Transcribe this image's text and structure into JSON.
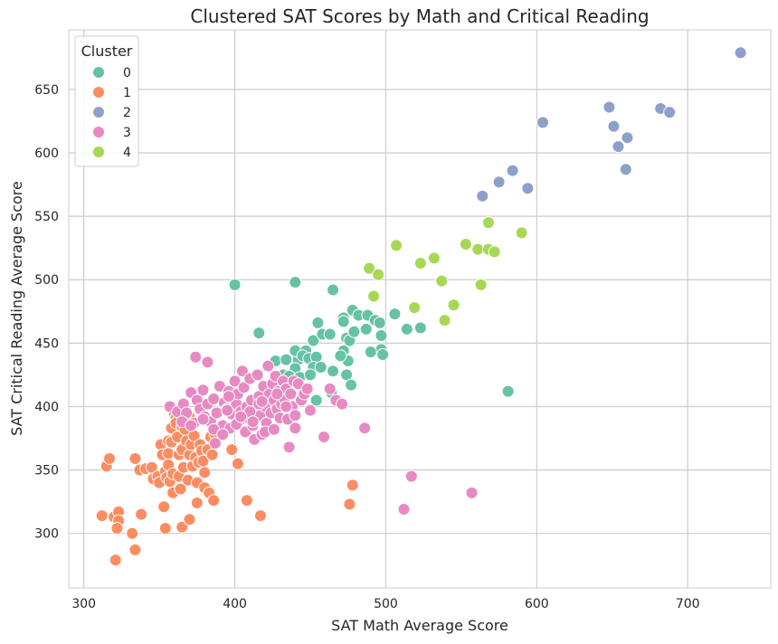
{
  "chart_data": {
    "type": "scatter",
    "title": "Clustered SAT Scores by Math and Critical Reading",
    "xlabel": "SAT Math Average Score",
    "ylabel": "SAT Critical Reading Average Score",
    "xlim": [
      290,
      755
    ],
    "ylim": [
      257,
      697
    ],
    "xticks": [
      300,
      400,
      500,
      600,
      700
    ],
    "yticks": [
      300,
      350,
      400,
      450,
      500,
      550,
      600,
      650
    ],
    "grid": true,
    "legend": {
      "title": "Cluster",
      "placement": "top-left"
    },
    "series": [
      {
        "name": "0",
        "color": "#66c2a5",
        "points": [
          [
            400,
            496
          ],
          [
            440,
            498
          ],
          [
            416,
            458
          ],
          [
            465,
            492
          ],
          [
            455,
            466
          ],
          [
            452,
            452
          ],
          [
            458,
            457
          ],
          [
            463,
            457
          ],
          [
            472,
            470
          ],
          [
            472,
            467
          ],
          [
            478,
            476
          ],
          [
            482,
            472
          ],
          [
            488,
            472
          ],
          [
            493,
            468
          ],
          [
            496,
            466
          ],
          [
            506,
            473
          ],
          [
            514,
            461
          ],
          [
            523,
            462
          ],
          [
            474,
            454
          ],
          [
            476,
            452
          ],
          [
            472,
            444
          ],
          [
            479,
            459
          ],
          [
            487,
            461
          ],
          [
            497,
            456
          ],
          [
            497,
            445
          ],
          [
            490,
            443
          ],
          [
            498,
            441
          ],
          [
            427,
            436
          ],
          [
            434,
            437
          ],
          [
            442,
            437
          ],
          [
            440,
            444
          ],
          [
            447,
            444
          ],
          [
            445,
            440
          ],
          [
            449,
            438
          ],
          [
            454,
            439
          ],
          [
            440,
            430
          ],
          [
            452,
            431
          ],
          [
            457,
            431
          ],
          [
            465,
            428
          ],
          [
            474,
            425
          ],
          [
            432,
            425
          ],
          [
            436,
            424
          ],
          [
            443,
            423
          ],
          [
            450,
            425
          ],
          [
            477,
            417
          ],
          [
            464,
            411
          ],
          [
            454,
            405
          ],
          [
            475,
            436
          ],
          [
            581,
            412
          ],
          [
            470,
            440
          ]
        ]
      },
      {
        "name": "1",
        "color": "#fc8d62",
        "points": [
          [
            315,
            353
          ],
          [
            317,
            359
          ],
          [
            312,
            314
          ],
          [
            320,
            313
          ],
          [
            323,
            317
          ],
          [
            323,
            310
          ],
          [
            322,
            304
          ],
          [
            321,
            279
          ],
          [
            332,
            300
          ],
          [
            334,
            287
          ],
          [
            334,
            359
          ],
          [
            337,
            350
          ],
          [
            338,
            315
          ],
          [
            341,
            351
          ],
          [
            345,
            352
          ],
          [
            346,
            343
          ],
          [
            349,
            345
          ],
          [
            350,
            340
          ],
          [
            351,
            370
          ],
          [
            352,
            362
          ],
          [
            353,
            321
          ],
          [
            354,
            349
          ],
          [
            355,
            344
          ],
          [
            356,
            373
          ],
          [
            356,
            363
          ],
          [
            356,
            354
          ],
          [
            357,
            341
          ],
          [
            358,
            383
          ],
          [
            358,
            372
          ],
          [
            359,
            347
          ],
          [
            359,
            332
          ],
          [
            360,
            394
          ],
          [
            361,
            391
          ],
          [
            361,
            387
          ],
          [
            362,
            376
          ],
          [
            363,
            362
          ],
          [
            363,
            345
          ],
          [
            364,
            335
          ],
          [
            365,
            384
          ],
          [
            365,
            366
          ],
          [
            366,
            352
          ],
          [
            367,
            382
          ],
          [
            368,
            373
          ],
          [
            369,
            342
          ],
          [
            370,
            392
          ],
          [
            370,
            362
          ],
          [
            371,
            370
          ],
          [
            372,
            353
          ],
          [
            373,
            377
          ],
          [
            374,
            360
          ],
          [
            375,
            340
          ],
          [
            376,
            356
          ],
          [
            377,
            370
          ],
          [
            378,
            365
          ],
          [
            379,
            357
          ],
          [
            380,
            348
          ],
          [
            382,
            366
          ],
          [
            384,
            376
          ],
          [
            385,
            362
          ],
          [
            387,
            378
          ],
          [
            354,
            304
          ],
          [
            365,
            305
          ],
          [
            370,
            311
          ],
          [
            375,
            324
          ],
          [
            380,
            336
          ],
          [
            383,
            332
          ],
          [
            386,
            326
          ],
          [
            398,
            366
          ],
          [
            402,
            355
          ],
          [
            408,
            326
          ],
          [
            417,
            314
          ],
          [
            476,
            323
          ],
          [
            478,
            338
          ]
        ]
      },
      {
        "name": "2",
        "color": "#8da0cb",
        "points": [
          [
            564,
            566
          ],
          [
            575,
            577
          ],
          [
            584,
            586
          ],
          [
            594,
            572
          ],
          [
            604,
            624
          ],
          [
            648,
            636
          ],
          [
            651,
            621
          ],
          [
            654,
            605
          ],
          [
            659,
            587
          ],
          [
            660,
            612
          ],
          [
            682,
            635
          ],
          [
            688,
            632
          ],
          [
            735,
            679
          ]
        ]
      },
      {
        "name": "3",
        "color": "#e78ac3",
        "points": [
          [
            374,
            439
          ],
          [
            382,
            435
          ],
          [
            357,
            400
          ],
          [
            362,
            396
          ],
          [
            366,
            402
          ],
          [
            368,
            395
          ],
          [
            371,
            411
          ],
          [
            373,
            387
          ],
          [
            375,
            405
          ],
          [
            377,
            398
          ],
          [
            379,
            413
          ],
          [
            380,
            392
          ],
          [
            382,
            402
          ],
          [
            384,
            388
          ],
          [
            386,
            406
          ],
          [
            388,
            395
          ],
          [
            390,
            416
          ],
          [
            392,
            385
          ],
          [
            393,
            403
          ],
          [
            395,
            398
          ],
          [
            396,
            412
          ],
          [
            397,
            383
          ],
          [
            398,
            394
          ],
          [
            400,
            420
          ],
          [
            401,
            402
          ],
          [
            402,
            410
          ],
          [
            403,
            389
          ],
          [
            404,
            396
          ],
          [
            405,
            428
          ],
          [
            406,
            415
          ],
          [
            407,
            380
          ],
          [
            408,
            400
          ],
          [
            409,
            391
          ],
          [
            410,
            422
          ],
          [
            411,
            405
          ],
          [
            412,
            385
          ],
          [
            413,
            374
          ],
          [
            414,
            395
          ],
          [
            415,
            425
          ],
          [
            416,
            408
          ],
          [
            417,
            393
          ],
          [
            418,
            378
          ],
          [
            419,
            416
          ],
          [
            420,
            400
          ],
          [
            421,
            387
          ],
          [
            422,
            432
          ],
          [
            423,
            410
          ],
          [
            424,
            395
          ],
          [
            425,
            418
          ],
          [
            426,
            405
          ],
          [
            427,
            424
          ],
          [
            428,
            398
          ],
          [
            429,
            412
          ],
          [
            430,
            391
          ],
          [
            431,
            402
          ],
          [
            432,
            420
          ],
          [
            433,
            406
          ],
          [
            434,
            414
          ],
          [
            435,
            390
          ],
          [
            436,
            368
          ],
          [
            437,
            410
          ],
          [
            438,
            400
          ],
          [
            439,
            420
          ],
          [
            440,
            393
          ],
          [
            442,
            418
          ],
          [
            444,
            405
          ],
          [
            446,
            410
          ],
          [
            448,
            414
          ],
          [
            450,
            397
          ],
          [
            459,
            376
          ],
          [
            463,
            414
          ],
          [
            467,
            405
          ],
          [
            471,
            402
          ],
          [
            486,
            383
          ],
          [
            517,
            345
          ],
          [
            512,
            319
          ],
          [
            557,
            332
          ],
          [
            365,
            388
          ],
          [
            371,
            385
          ],
          [
            379,
            390
          ],
          [
            386,
            382
          ],
          [
            392,
            378
          ],
          [
            396,
            408
          ],
          [
            401,
            386
          ],
          [
            410,
            396
          ],
          [
            416,
            402
          ],
          [
            420,
            380
          ],
          [
            426,
            382
          ],
          [
            440,
            383
          ],
          [
            387,
            371
          ],
          [
            395,
            397
          ],
          [
            404,
            392
          ],
          [
            412,
            388
          ],
          [
            418,
            404
          ],
          [
            428,
            410
          ],
          [
            434,
            400
          ]
        ]
      },
      {
        "name": "4",
        "color": "#a6d854",
        "points": [
          [
            489,
            509
          ],
          [
            492,
            487
          ],
          [
            495,
            504
          ],
          [
            507,
            527
          ],
          [
            519,
            478
          ],
          [
            523,
            513
          ],
          [
            532,
            517
          ],
          [
            537,
            499
          ],
          [
            539,
            468
          ],
          [
            545,
            480
          ],
          [
            553,
            528
          ],
          [
            561,
            524
          ],
          [
            563,
            496
          ],
          [
            568,
            545
          ],
          [
            568,
            524
          ],
          [
            572,
            522
          ],
          [
            590,
            537
          ]
        ]
      }
    ]
  }
}
